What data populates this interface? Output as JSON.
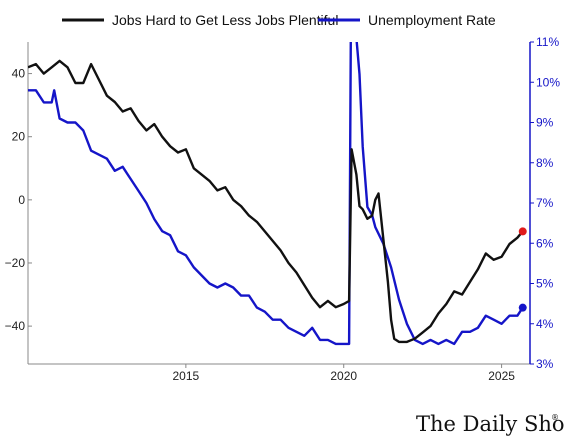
{
  "chart_data": {
    "type": "line",
    "title": "",
    "xlabel": "",
    "ylabel": "",
    "xlim": [
      2010.0,
      2025.9
    ],
    "x_ticks": [
      2015,
      2020,
      2025
    ],
    "x_tick_labels": [
      "2015",
      "2020",
      "2025"
    ],
    "y_left": {
      "lim": [
        -52,
        50
      ],
      "ticks": [
        40,
        20,
        0,
        -20,
        -40
      ],
      "tick_labels": [
        "40",
        "20",
        "0",
        "−20",
        "−40"
      ]
    },
    "y_right": {
      "lim": [
        3,
        11
      ],
      "ticks": [
        11,
        10,
        9,
        8,
        7,
        6,
        5,
        4,
        3
      ],
      "tick_labels": [
        "11%",
        "10%",
        "9%",
        "8%",
        "7%",
        "6%",
        "5%",
        "4%",
        "3%"
      ],
      "color": "#1515c8"
    },
    "legend_position": "top",
    "grid": false,
    "series": [
      {
        "name": "Jobs Hard to Get Less Jobs Plentiful",
        "axis": "left",
        "color": "#111111",
        "end_marker_color": "#e01b1b",
        "points": [
          [
            2010.0,
            42
          ],
          [
            2010.25,
            43
          ],
          [
            2010.5,
            40
          ],
          [
            2010.75,
            42
          ],
          [
            2011.0,
            44
          ],
          [
            2011.25,
            42
          ],
          [
            2011.5,
            37
          ],
          [
            2011.75,
            37
          ],
          [
            2012.0,
            43
          ],
          [
            2012.25,
            38
          ],
          [
            2012.5,
            33
          ],
          [
            2012.75,
            31
          ],
          [
            2013.0,
            28
          ],
          [
            2013.25,
            29
          ],
          [
            2013.5,
            25
          ],
          [
            2013.75,
            22
          ],
          [
            2014.0,
            24
          ],
          [
            2014.25,
            20
          ],
          [
            2014.5,
            17
          ],
          [
            2014.75,
            15
          ],
          [
            2015.0,
            16
          ],
          [
            2015.25,
            10
          ],
          [
            2015.5,
            8
          ],
          [
            2015.75,
            6
          ],
          [
            2016.0,
            3
          ],
          [
            2016.25,
            4
          ],
          [
            2016.5,
            0
          ],
          [
            2016.75,
            -2
          ],
          [
            2017.0,
            -5
          ],
          [
            2017.25,
            -7
          ],
          [
            2017.5,
            -10
          ],
          [
            2017.75,
            -13
          ],
          [
            2018.0,
            -16
          ],
          [
            2018.25,
            -20
          ],
          [
            2018.5,
            -23
          ],
          [
            2018.75,
            -27
          ],
          [
            2019.0,
            -31
          ],
          [
            2019.25,
            -34
          ],
          [
            2019.5,
            -32
          ],
          [
            2019.75,
            -34
          ],
          [
            2020.0,
            -33
          ],
          [
            2020.17,
            -32
          ],
          [
            2020.25,
            16
          ],
          [
            2020.4,
            8
          ],
          [
            2020.5,
            -2
          ],
          [
            2020.6,
            -3
          ],
          [
            2020.75,
            -6
          ],
          [
            2020.9,
            -5
          ],
          [
            2021.0,
            0
          ],
          [
            2021.1,
            2
          ],
          [
            2021.25,
            -12
          ],
          [
            2021.4,
            -26
          ],
          [
            2021.5,
            -38
          ],
          [
            2021.6,
            -44
          ],
          [
            2021.75,
            -45
          ],
          [
            2022.0,
            -45
          ],
          [
            2022.25,
            -44
          ],
          [
            2022.5,
            -42
          ],
          [
            2022.75,
            -40
          ],
          [
            2023.0,
            -36
          ],
          [
            2023.25,
            -33
          ],
          [
            2023.5,
            -29
          ],
          [
            2023.75,
            -30
          ],
          [
            2024.0,
            -26
          ],
          [
            2024.25,
            -22
          ],
          [
            2024.5,
            -17
          ],
          [
            2024.75,
            -19
          ],
          [
            2025.0,
            -18
          ],
          [
            2025.25,
            -14
          ],
          [
            2025.5,
            -12
          ],
          [
            2025.67,
            -10
          ]
        ]
      },
      {
        "name": "Unemployment Rate",
        "axis": "right",
        "color": "#1515c8",
        "end_marker_color": "#1515c8",
        "points": [
          [
            2010.0,
            9.8
          ],
          [
            2010.25,
            9.8
          ],
          [
            2010.5,
            9.5
          ],
          [
            2010.75,
            9.5
          ],
          [
            2010.83,
            9.8
          ],
          [
            2011.0,
            9.1
          ],
          [
            2011.25,
            9.0
          ],
          [
            2011.5,
            9.0
          ],
          [
            2011.75,
            8.8
          ],
          [
            2012.0,
            8.3
          ],
          [
            2012.25,
            8.2
          ],
          [
            2012.5,
            8.1
          ],
          [
            2012.75,
            7.8
          ],
          [
            2013.0,
            7.9
          ],
          [
            2013.25,
            7.6
          ],
          [
            2013.5,
            7.3
          ],
          [
            2013.75,
            7.0
          ],
          [
            2014.0,
            6.6
          ],
          [
            2014.25,
            6.3
          ],
          [
            2014.5,
            6.2
          ],
          [
            2014.75,
            5.8
          ],
          [
            2015.0,
            5.7
          ],
          [
            2015.25,
            5.4
          ],
          [
            2015.5,
            5.2
          ],
          [
            2015.75,
            5.0
          ],
          [
            2016.0,
            4.9
          ],
          [
            2016.25,
            5.0
          ],
          [
            2016.5,
            4.9
          ],
          [
            2016.75,
            4.7
          ],
          [
            2017.0,
            4.7
          ],
          [
            2017.25,
            4.4
          ],
          [
            2017.5,
            4.3
          ],
          [
            2017.75,
            4.1
          ],
          [
            2018.0,
            4.1
          ],
          [
            2018.25,
            3.9
          ],
          [
            2018.5,
            3.8
          ],
          [
            2018.75,
            3.7
          ],
          [
            2019.0,
            3.9
          ],
          [
            2019.25,
            3.6
          ],
          [
            2019.5,
            3.6
          ],
          [
            2019.75,
            3.5
          ],
          [
            2020.0,
            3.5
          ],
          [
            2020.17,
            3.5
          ],
          [
            2020.25,
            14.7
          ],
          [
            2020.4,
            11.1
          ],
          [
            2020.5,
            10.2
          ],
          [
            2020.6,
            8.4
          ],
          [
            2020.75,
            6.9
          ],
          [
            2020.9,
            6.7
          ],
          [
            2021.0,
            6.4
          ],
          [
            2021.25,
            6.0
          ],
          [
            2021.5,
            5.4
          ],
          [
            2021.75,
            4.6
          ],
          [
            2022.0,
            4.0
          ],
          [
            2022.25,
            3.6
          ],
          [
            2022.5,
            3.5
          ],
          [
            2022.75,
            3.6
          ],
          [
            2023.0,
            3.5
          ],
          [
            2023.25,
            3.6
          ],
          [
            2023.5,
            3.5
          ],
          [
            2023.75,
            3.8
          ],
          [
            2024.0,
            3.8
          ],
          [
            2024.25,
            3.9
          ],
          [
            2024.5,
            4.2
          ],
          [
            2024.75,
            4.1
          ],
          [
            2025.0,
            4.0
          ],
          [
            2025.25,
            4.2
          ],
          [
            2025.5,
            4.2
          ],
          [
            2025.67,
            4.4
          ]
        ]
      }
    ]
  },
  "branding": {
    "text": "The Daily Shot",
    "mark": "®"
  }
}
